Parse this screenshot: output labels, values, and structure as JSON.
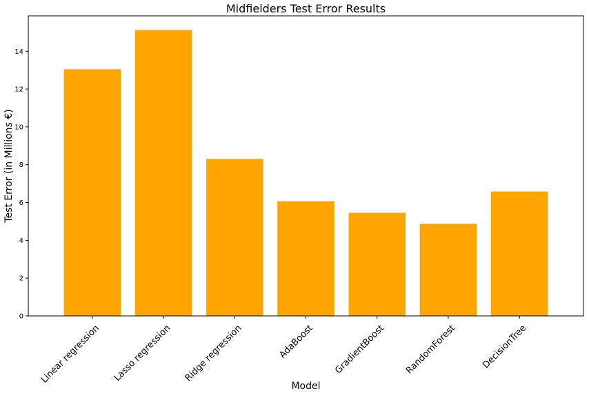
{
  "chart_data": {
    "type": "bar",
    "title": "Midfielders Test Error Results",
    "xlabel": "Model",
    "ylabel": "Test Error (in Millions €)",
    "categories": [
      "Linear regression",
      "Lasso regression",
      "Ridge regression",
      "AdaBoost",
      "GradientBoost",
      "RandomForest",
      "DecisionTree"
    ],
    "values": [
      13.05,
      15.12,
      8.3,
      6.06,
      5.45,
      4.87,
      6.58
    ],
    "ylim": [
      0,
      15.87
    ],
    "yticks": [
      0,
      2,
      4,
      6,
      8,
      10,
      12,
      14
    ],
    "bar_color": "#ffa500",
    "grid": false,
    "legend": "none"
  }
}
